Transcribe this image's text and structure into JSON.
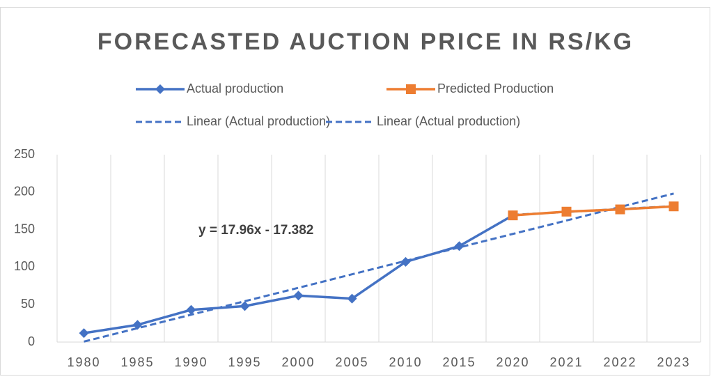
{
  "chart_data": {
    "type": "line",
    "title": "FORECASTED AUCTION PRICE IN RS/KG",
    "annotation": "y = 17.96x - 17.382",
    "categories": [
      "1980",
      "1985",
      "1990",
      "1995",
      "2000",
      "2005",
      "2010",
      "2015",
      "2020",
      "2021",
      "2022",
      "2023"
    ],
    "series": [
      {
        "name": "Actual production",
        "color": "#4472c4",
        "marker": "diamond",
        "values": [
          12,
          23,
          43,
          48,
          62,
          58,
          107,
          128,
          169,
          null,
          null,
          null
        ]
      },
      {
        "name": "Predicted Production",
        "color": "#ed7d31",
        "marker": "square",
        "values": [
          null,
          null,
          null,
          null,
          null,
          null,
          null,
          null,
          169,
          174,
          177,
          181
        ]
      },
      {
        "name": "Linear (Actual production)",
        "color": "#4472c4",
        "dash": true,
        "values": [
          0.6,
          18.5,
          36.5,
          54.5,
          72.4,
          90.4,
          108.3,
          126.3,
          144.3,
          162.2,
          180.2,
          198.1
        ]
      },
      {
        "name": "Linear (Actual production)",
        "color": "#4472c4",
        "dash": true,
        "values": [
          null,
          null,
          null,
          null,
          null,
          null,
          null,
          null,
          169.7,
          173.6,
          177.5,
          181.4
        ]
      }
    ],
    "ylim": [
      0,
      250
    ],
    "yticks": [
      0,
      50,
      100,
      150,
      200,
      250
    ],
    "grid": true
  }
}
